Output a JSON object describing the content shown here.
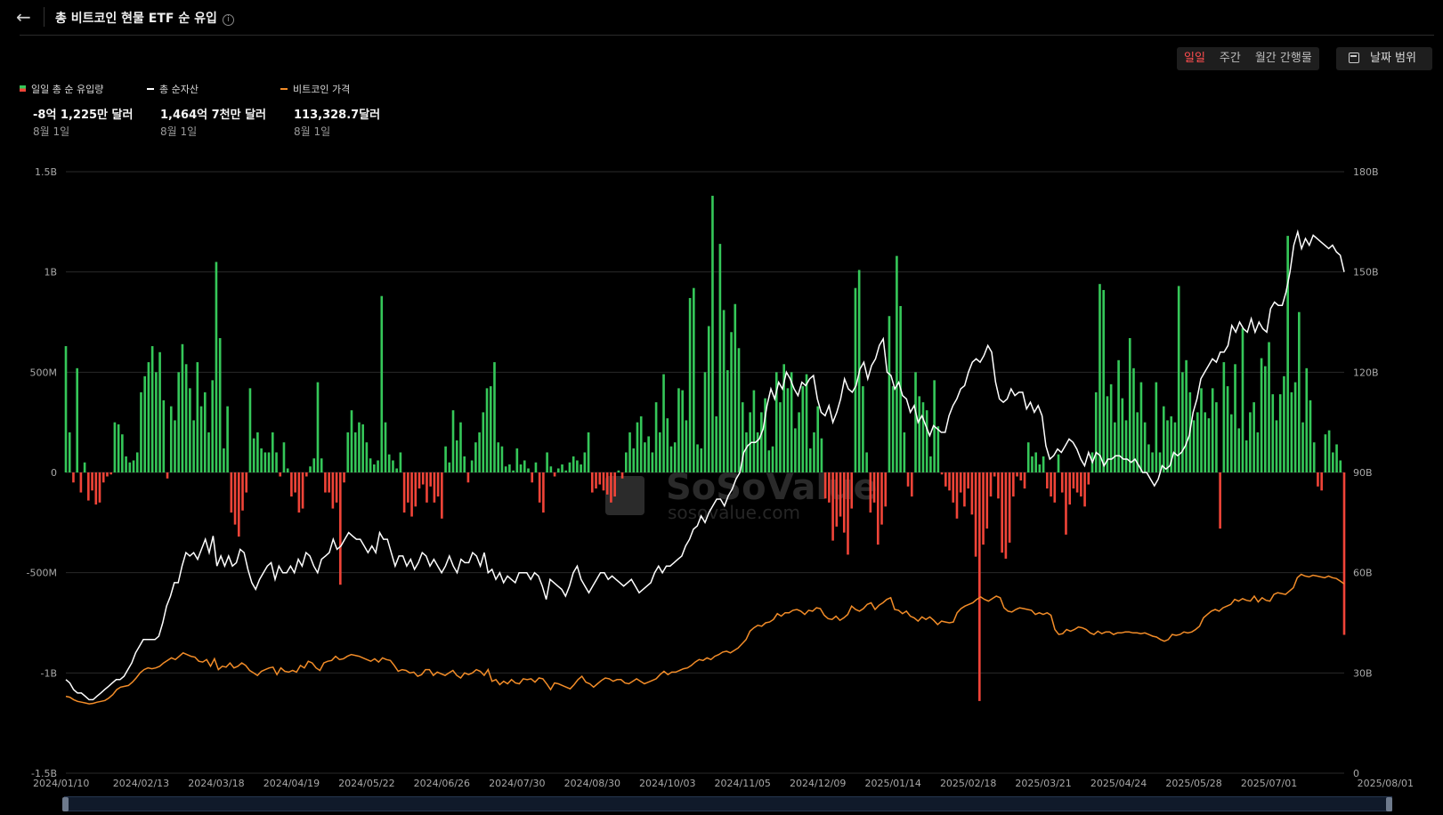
{
  "header": {
    "title": "총 비트코인 현물 ETF 순 유입"
  },
  "controls": {
    "tabs": [
      {
        "label": "일일",
        "active": true
      },
      {
        "label": "주간",
        "active": false
      },
      {
        "label": "월간 간행물",
        "active": false
      }
    ],
    "date_range_label": "날짜 범위"
  },
  "legend": [
    {
      "name": "일일 총 순 유입량",
      "value": "-8억 1,225만 달러",
      "date": "8월 1일",
      "color": "#35c759"
    },
    {
      "name": "총 순자산",
      "value": "1,464억 7천만 달러",
      "date": "8월 1일",
      "color": "#ffffff"
    },
    {
      "name": "비트코인 가격",
      "value": "113,328.7달러",
      "date": "8월 1일",
      "color": "#f28c28"
    }
  ],
  "watermark": {
    "brand": "SoSoValue",
    "url": "sosovalue.com"
  },
  "colors": {
    "inflow": "#35c759",
    "outflow": "#f04438",
    "net_assets": "#ffffff",
    "price": "#f28c28",
    "background": "#000000",
    "grid": "#2a2a2a"
  },
  "chart_data": {
    "type": "bar",
    "x_ticks": [
      "2024/01/10",
      "2024/02/13",
      "2024/03/18",
      "2024/04/19",
      "2024/05/22",
      "2024/06/26",
      "2024/07/30",
      "2024/08/30",
      "2024/10/03",
      "2024/11/05",
      "2024/12/09",
      "2025/01/14",
      "2025/02/18",
      "2025/03/21",
      "2025/04/24",
      "2025/05/28",
      "2025/07/01",
      "2025/08/01"
    ],
    "left_axis": {
      "ticks": [
        "1.5B",
        "1B",
        "500M",
        "0",
        "-500M",
        "-1B",
        "-1.5B"
      ],
      "range": [
        -1.5,
        1.5
      ],
      "unit": "B USD"
    },
    "right_axis": {
      "ticks": [
        "180B",
        "150B",
        "120B",
        "90B",
        "60B",
        "30B",
        "0"
      ],
      "range": [
        0,
        180
      ],
      "unit": "B USD"
    },
    "bars_daily_net_inflow_billion": [
      0.63,
      0.2,
      -0.05,
      0.52,
      -0.1,
      0.05,
      -0.14,
      -0.09,
      -0.16,
      -0.15,
      -0.05,
      -0.02,
      -0.01,
      0.25,
      0.24,
      0.19,
      0.08,
      0.05,
      0.06,
      0.1,
      0.4,
      0.48,
      0.55,
      0.63,
      0.5,
      0.6,
      0.36,
      -0.03,
      0.33,
      0.26,
      0.5,
      0.64,
      0.54,
      0.42,
      0.26,
      0.55,
      0.33,
      0.4,
      0.2,
      0.46,
      1.05,
      0.67,
      0.12,
      0.33,
      -0.2,
      -0.26,
      -0.32,
      -0.19,
      -0.1,
      0.42,
      0.17,
      0.2,
      0.12,
      0.1,
      0.1,
      0.2,
      0.1,
      -0.02,
      0.15,
      0.02,
      -0.12,
      -0.1,
      -0.2,
      -0.18,
      -0.02,
      0.03,
      0.07,
      0.45,
      0.07,
      -0.1,
      -0.1,
      -0.18,
      -0.15,
      -0.56,
      -0.05,
      0.2,
      0.31,
      0.2,
      0.25,
      0.24,
      0.15,
      0.07,
      0.04,
      0.06,
      0.88,
      0.25,
      0.09,
      0.06,
      0.02,
      0.1,
      -0.2,
      -0.15,
      -0.22,
      -0.17,
      -0.08,
      -0.06,
      -0.15,
      -0.07,
      -0.15,
      -0.12,
      -0.23,
      0.13,
      0.05,
      0.31,
      0.16,
      0.25,
      0.08,
      -0.05,
      0.06,
      0.15,
      0.2,
      0.3,
      0.42,
      0.43,
      0.55,
      0.15,
      0.13,
      0.03,
      0.04,
      0.01,
      0.12,
      0.04,
      0.06,
      0.02,
      -0.05,
      0.05,
      -0.15,
      -0.2,
      0.1,
      0.03,
      -0.02,
      0.02,
      0.04,
      0.01,
      0.05,
      0.08,
      0.06,
      0.04,
      0.1,
      0.2,
      -0.1,
      -0.08,
      -0.06,
      -0.09,
      -0.11,
      -0.15,
      -0.12,
      0.01,
      -0.03,
      0.1,
      0.2,
      0.12,
      0.25,
      0.28,
      0.15,
      0.18,
      0.1,
      0.35,
      0.2,
      0.49,
      0.27,
      0.13,
      0.15,
      0.42,
      0.41,
      0.26,
      0.87,
      0.92,
      0.14,
      0.12,
      0.5,
      0.73,
      1.38,
      0.28,
      1.14,
      0.81,
      0.51,
      0.7,
      0.84,
      0.62,
      0.35,
      0.2,
      0.3,
      0.41,
      0.2,
      0.3,
      0.37,
      0.11,
      0.13,
      0.5,
      0.35,
      0.54,
      0.42,
      0.5,
      0.22,
      0.3,
      0.43,
      0.49,
      0.12,
      0.2,
      0.33,
      0.17,
      -0.13,
      -0.15,
      -0.34,
      -0.27,
      -0.22,
      -0.3,
      -0.41,
      -0.18,
      0.92,
      1.01,
      0.43,
      0.1,
      -0.2,
      -0.15,
      -0.36,
      -0.26,
      -0.17,
      0.78,
      0.43,
      1.08,
      0.83,
      0.2,
      -0.07,
      -0.12,
      0.5,
      0.38,
      0.35,
      0.31,
      0.08,
      0.46,
      0.23,
      -0.01,
      -0.07,
      -0.09,
      -0.15,
      -0.23,
      -0.1,
      -0.17,
      -0.08,
      -0.21,
      -0.42,
      -1.14,
      -0.36,
      -0.28,
      -0.12,
      -0.02,
      -0.13,
      -0.4,
      -0.43,
      -0.35,
      -0.12,
      -0.02,
      -0.04,
      -0.08,
      0.15,
      0.08,
      0.1,
      0.04,
      0.08,
      -0.08,
      -0.12,
      -0.15,
      0.09,
      -0.1,
      -0.31,
      -0.16,
      -0.08,
      -0.1,
      -0.12,
      -0.17,
      -0.06,
      0.1,
      0.4,
      0.94,
      0.91,
      0.38,
      0.44,
      0.25,
      0.56,
      0.37,
      0.26,
      0.67,
      0.52,
      0.3,
      0.45,
      0.25,
      0.14,
      0.1,
      0.45,
      0.1,
      0.33,
      0.26,
      0.28,
      0.25,
      0.93,
      0.5,
      0.56,
      0.4,
      0.26,
      0.3,
      0.42,
      0.3,
      0.27,
      0.42,
      0.35,
      -0.28,
      0.55,
      0.43,
      0.29,
      0.54,
      0.22,
      0.72,
      0.16,
      0.3,
      0.35,
      0.2,
      0.57,
      0.53,
      0.65,
      0.39,
      0.26,
      0.39,
      0.48,
      1.18,
      0.4,
      0.45,
      0.8,
      0.25,
      0.52,
      0.36,
      0.15,
      -0.07,
      -0.09,
      0.19,
      0.21,
      0.1,
      0.14,
      0.06,
      -0.81
    ],
    "series": [
      {
        "name": "총 순자산",
        "axis": "right",
        "values_billion": [
          28,
          27,
          25,
          24,
          24,
          23,
          22,
          22,
          23,
          24,
          25,
          26,
          27,
          28,
          28,
          29,
          31,
          33,
          36,
          38,
          40,
          40,
          40,
          40,
          41,
          45,
          50,
          53,
          57,
          57,
          62,
          66,
          65,
          66,
          64,
          67,
          70,
          66,
          71,
          62,
          65,
          62,
          65,
          62,
          63,
          67,
          66,
          61,
          57,
          55,
          58,
          60,
          62,
          63,
          58,
          62,
          60,
          60,
          62,
          60,
          64,
          62,
          66,
          65,
          62,
          60,
          64,
          65,
          66,
          70,
          67,
          68,
          70,
          72,
          71,
          70,
          70,
          68,
          66,
          68,
          66,
          72,
          70,
          70,
          66,
          62,
          65,
          65,
          62,
          64,
          61,
          63,
          66,
          65,
          62,
          64,
          62,
          60,
          62,
          65,
          62,
          60,
          64,
          63,
          63,
          66,
          65,
          62,
          66,
          60,
          61,
          58,
          60,
          57,
          59,
          58,
          57,
          60,
          60,
          60,
          58,
          60,
          59,
          56,
          52,
          58,
          57,
          56,
          55,
          53,
          56,
          60,
          62,
          58,
          56,
          54,
          56,
          58,
          60,
          60,
          58,
          59,
          58,
          57,
          56,
          57,
          58,
          56,
          54,
          55,
          56,
          57,
          60,
          62,
          60,
          62,
          62,
          63,
          64,
          65,
          68,
          70,
          73,
          74,
          77,
          75,
          78,
          80,
          82,
          82,
          80,
          83,
          85,
          88,
          90,
          96,
          98,
          99,
          99,
          100,
          103,
          110,
          115,
          112,
          117,
          115,
          120,
          118,
          115,
          113,
          117,
          116,
          118,
          119,
          112,
          108,
          107,
          110,
          105,
          108,
          112,
          118,
          115,
          114,
          116,
          121,
          123,
          118,
          122,
          124,
          128,
          130,
          120,
          119,
          115,
          117,
          113,
          112,
          108,
          110,
          105,
          107,
          104,
          101,
          104,
          103,
          102,
          102,
          107,
          110,
          112,
          115,
          116,
          120,
          123,
          124,
          123,
          125,
          128,
          126,
          117,
          112,
          111,
          112,
          115,
          113,
          114,
          114,
          109,
          111,
          108,
          110,
          107,
          98,
          94,
          95,
          97,
          96,
          98,
          100,
          99,
          97,
          94,
          92,
          96,
          93,
          96,
          95,
          92,
          94,
          94,
          95,
          95,
          94,
          94,
          93,
          94,
          92,
          90,
          90,
          88,
          86,
          88,
          92,
          91,
          92,
          96,
          95,
          96,
          98,
          101,
          108,
          112,
          118,
          120,
          122,
          124,
          123,
          126,
          126,
          128,
          134,
          132,
          135,
          133,
          132,
          136,
          132,
          135,
          133,
          132,
          139,
          141,
          140,
          140,
          144,
          150,
          158,
          162,
          157,
          160,
          158,
          161,
          160,
          159,
          158,
          157,
          158,
          156,
          155,
          150
        ]
      },
      {
        "name": "비트코인 가격",
        "axis": "right",
        "values_price_usd": [
          46000,
          45500,
          44000,
          43000,
          42500,
          42000,
          41500,
          41800,
          42500,
          43000,
          43500,
          45000,
          47000,
          50000,
          51500,
          52000,
          52500,
          54500,
          57000,
          60000,
          62000,
          63000,
          62500,
          63000,
          64000,
          66000,
          67500,
          69000,
          68000,
          70000,
          72000,
          71000,
          70000,
          69500,
          67000,
          66500,
          68000,
          64000,
          68500,
          62000,
          64000,
          63500,
          66000,
          63000,
          64000,
          66000,
          64500,
          61500,
          60000,
          58500,
          61000,
          62000,
          63000,
          63500,
          59000,
          63000,
          61000,
          60500,
          61500,
          60500,
          64500,
          63000,
          67000,
          66000,
          63000,
          61500,
          66000,
          67000,
          67500,
          70000,
          68000,
          68500,
          70000,
          71000,
          70500,
          70000,
          69000,
          68000,
          67000,
          68500,
          66500,
          69000,
          68000,
          67500,
          64500,
          61000,
          62000,
          61500,
          60000,
          60500,
          58000,
          59000,
          62000,
          62000,
          58500,
          60500,
          59500,
          58500,
          60000,
          61500,
          58500,
          57000,
          60000,
          59000,
          60000,
          62000,
          61000,
          58500,
          62000,
          55000,
          56000,
          53000,
          55000,
          53500,
          56000,
          54000,
          53500,
          56500,
          56000,
          56500,
          54500,
          57000,
          56500,
          53500,
          50000,
          54000,
          53500,
          52500,
          51500,
          50500,
          53000,
          56000,
          58000,
          54500,
          53500,
          51500,
          53500,
          55500,
          57000,
          56500,
          55000,
          56000,
          56000,
          54000,
          53500,
          55000,
          56500,
          55000,
          53500,
          54500,
          55500,
          56500,
          59000,
          61000,
          59000,
          60500,
          60500,
          61500,
          62500,
          63000,
          64500,
          66500,
          68000,
          67500,
          69000,
          68000,
          70000,
          71000,
          72500,
          73000,
          72000,
          73500,
          75000,
          77500,
          80000,
          85000,
          87000,
          88500,
          88000,
          90000,
          90500,
          92000,
          95500,
          94000,
          96000,
          96000,
          97500,
          98000,
          97000,
          95000,
          97500,
          97000,
          99000,
          98500,
          94500,
          92500,
          92000,
          94000,
          91500,
          93000,
          95000,
          100000,
          98000,
          97000,
          98500,
          101000,
          102000,
          98000,
          100500,
          102000,
          104000,
          105000,
          98000,
          97500,
          95500,
          97000,
          94000,
          93000,
          91000,
          93500,
          92000,
          93500,
          91500,
          89000,
          91000,
          90500,
          90000,
          90500,
          96000,
          98500,
          100000,
          101000,
          102000,
          104000,
          105500,
          104000,
          103000,
          104500,
          106000,
          105000,
          99000,
          97000,
          96500,
          98000,
          99000,
          98500,
          98000,
          97500,
          95000,
          96000,
          95000,
          96000,
          94500,
          86000,
          83000,
          83500,
          86000,
          85000,
          86000,
          87500,
          87000,
          86000,
          84000,
          83000,
          85000,
          83500,
          84500,
          84500,
          83000,
          84000,
          84000,
          84500,
          84500,
          84000,
          84000,
          83500,
          84000,
          83000,
          82000,
          81500,
          80000,
          79000,
          80000,
          83000,
          82500,
          83000,
          84500,
          84000,
          84500,
          86000,
          88000,
          93000,
          95000,
          97000,
          98000,
          97000,
          99000,
          100000,
          101000,
          104000,
          103000,
          104500,
          103500,
          103000,
          106000,
          102500,
          105000,
          103500,
          103000,
          107000,
          108000,
          107500,
          107000,
          109000,
          111000,
          117000,
          119000,
          118000,
          117500,
          118500,
          118000,
          117500,
          117000,
          118000,
          117000,
          116500,
          115000,
          113329
        ]
      }
    ],
    "title": "총 비트코인 현물 ETF 순 유입"
  }
}
